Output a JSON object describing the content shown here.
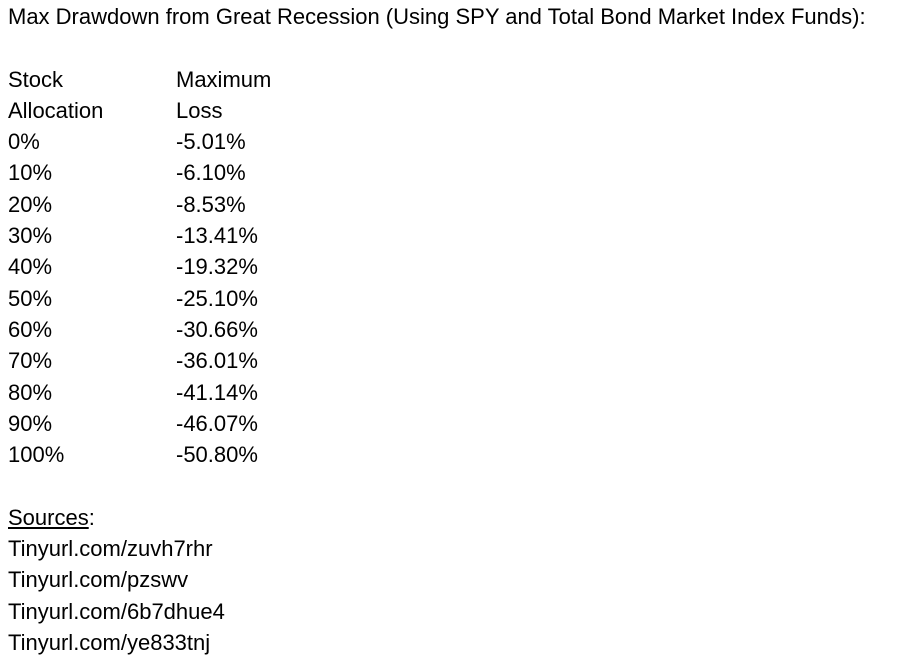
{
  "title": "Max Drawdown from Great Recession (Using SPY and Total Bond Market Index Funds):",
  "table": {
    "headers": [
      [
        "Stock",
        "Maximum"
      ],
      [
        "Allocation",
        "Loss"
      ]
    ],
    "rows": [
      {
        "allocation": "0%",
        "loss": "-5.01%"
      },
      {
        "allocation": "10%",
        "loss": "-6.10%"
      },
      {
        "allocation": "20%",
        "loss": "-8.53%"
      },
      {
        "allocation": "30%",
        "loss": "-13.41%"
      },
      {
        "allocation": "40%",
        "loss": "-19.32%"
      },
      {
        "allocation": "50%",
        "loss": "-25.10%"
      },
      {
        "allocation": "60%",
        "loss": "-30.66%"
      },
      {
        "allocation": "70%",
        "loss": "-36.01%"
      },
      {
        "allocation": "80%",
        "loss": "-41.14%"
      },
      {
        "allocation": "90%",
        "loss": "-46.07%"
      },
      {
        "allocation": "100%",
        "loss": "-50.80%"
      }
    ]
  },
  "sources": {
    "label": "Sources",
    "colon": ":",
    "links": [
      "Tinyurl.com/zuvh7rhr",
      "Tinyurl.com/pzswv",
      "Tinyurl.com/6b7dhue4",
      "Tinyurl.com/ye833tnj"
    ]
  }
}
